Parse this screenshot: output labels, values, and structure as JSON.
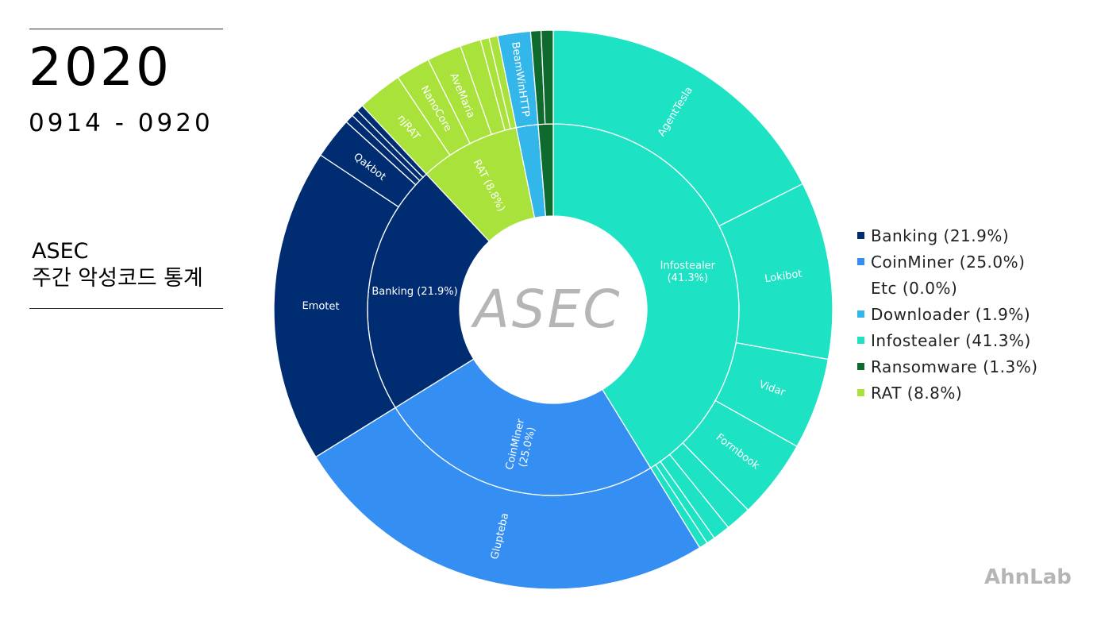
{
  "header": {
    "year": "2020",
    "date_range": "0914 - 0920",
    "title_line1": "ASEC",
    "title_line2": "주간 악성코드 통계"
  },
  "center_logo": "ASEC",
  "brand": "AhnLab",
  "colors": {
    "Banking": "#002d72",
    "CoinMiner": "#358ef2",
    "Etc": "#ffffff",
    "Downloader": "#33b6ea",
    "Infostealer": "#1ee2c4",
    "Ransomware": "#0e6b2d",
    "RAT": "#a9e23a",
    "logo": "#b5b5b5"
  },
  "chart_data": {
    "type": "sunburst",
    "legend_placement": "right",
    "legend": [
      {
        "key": "Banking",
        "label": "Banking (21.9%)"
      },
      {
        "key": "CoinMiner",
        "label": "CoinMiner (25.0%)"
      },
      {
        "key": "Etc",
        "label": "Etc (0.0%)"
      },
      {
        "key": "Downloader",
        "label": "Downloader (1.9%)"
      },
      {
        "key": "Infostealer",
        "label": "Infostealer (41.3%)"
      },
      {
        "key": "Ransomware",
        "label": "Ransomware (1.3%)"
      },
      {
        "key": "RAT",
        "label": "RAT (8.8%)"
      }
    ],
    "inner": [
      {
        "key": "Infostealer",
        "value": 41.3,
        "label": "Infostealer\n(41.3%)"
      },
      {
        "key": "CoinMiner",
        "value": 25.0,
        "label": "CoinMiner\n(25.0%)"
      },
      {
        "key": "Banking",
        "value": 21.9,
        "label": "Banking (21.9%)"
      },
      {
        "key": "RAT",
        "value": 8.8,
        "label": "RAT (8.8%)"
      },
      {
        "key": "Downloader",
        "value": 1.9,
        "label": ""
      },
      {
        "key": "Ransomware",
        "value": 1.3,
        "label": ""
      }
    ],
    "outer": [
      {
        "parent": "Infostealer",
        "value": 17.6,
        "label": "AgentTesla"
      },
      {
        "parent": "Infostealer",
        "value": 10.3,
        "label": "Lokibot"
      },
      {
        "parent": "Infostealer",
        "value": 5.3,
        "label": "Vidar"
      },
      {
        "parent": "Infostealer",
        "value": 4.6,
        "label": "Formbook"
      },
      {
        "parent": "Infostealer",
        "value": 1.5,
        "label": ""
      },
      {
        "parent": "Infostealer",
        "value": 1.0,
        "label": ""
      },
      {
        "parent": "Infostealer",
        "value": 0.5,
        "label": ""
      },
      {
        "parent": "Infostealer",
        "value": 0.5,
        "label": ""
      },
      {
        "parent": "CoinMiner",
        "value": 25.0,
        "label": "Glupteba"
      },
      {
        "parent": "Banking",
        "value": 18.2,
        "label": "Emotet"
      },
      {
        "parent": "Banking",
        "value": 2.4,
        "label": "Qakbot"
      },
      {
        "parent": "Banking",
        "value": 0.5,
        "label": ""
      },
      {
        "parent": "Banking",
        "value": 0.4,
        "label": ""
      },
      {
        "parent": "Banking",
        "value": 0.4,
        "label": ""
      },
      {
        "parent": "RAT",
        "value": 2.6,
        "label": "njRAT"
      },
      {
        "parent": "RAT",
        "value": 2.0,
        "label": "NanoCore"
      },
      {
        "parent": "RAT",
        "value": 2.0,
        "label": "AveMaria"
      },
      {
        "parent": "RAT",
        "value": 1.2,
        "label": ""
      },
      {
        "parent": "RAT",
        "value": 0.5,
        "label": ""
      },
      {
        "parent": "RAT",
        "value": 0.5,
        "label": ""
      },
      {
        "parent": "Downloader",
        "value": 1.9,
        "label": "BeamWinHTTP"
      },
      {
        "parent": "Ransomware",
        "value": 0.6,
        "label": ""
      },
      {
        "parent": "Ransomware",
        "value": 0.7,
        "label": ""
      }
    ]
  }
}
